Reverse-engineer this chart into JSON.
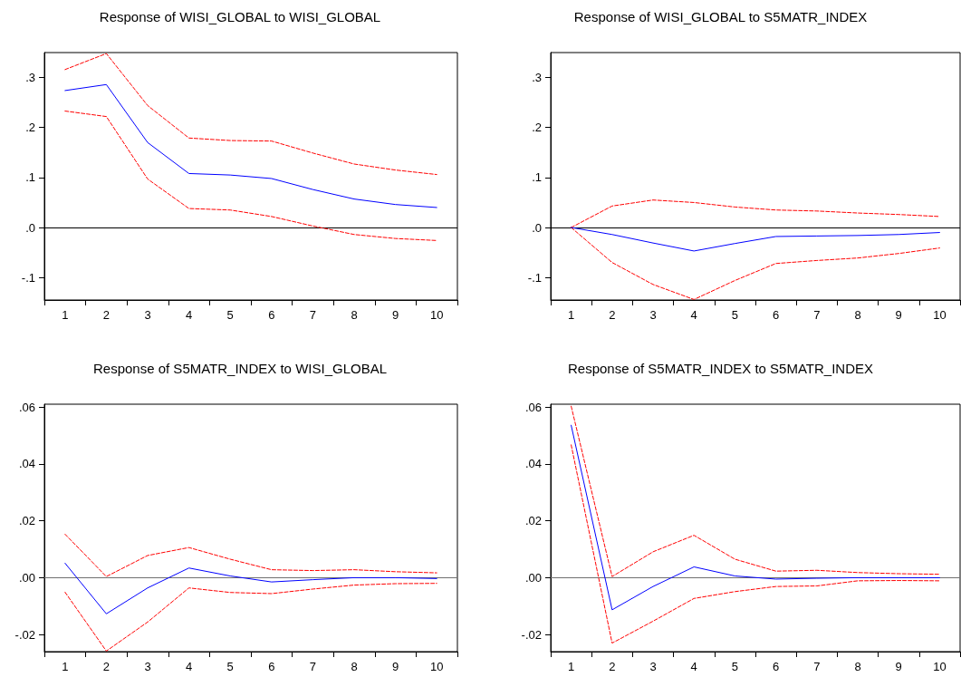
{
  "chart_data": [
    {
      "type": "line",
      "title": "Response of WISI_GLOBAL to WISI_GLOBAL",
      "categories": [
        "1",
        "2",
        "3",
        "4",
        "5",
        "6",
        "7",
        "8",
        "9",
        "10"
      ],
      "series": [
        {
          "color": "#0000ff",
          "line_style": "solid",
          "values": [
            0.274,
            0.286,
            0.17,
            0.108,
            0.105,
            0.098,
            0.076,
            0.057,
            0.046,
            0.04
          ]
        },
        {
          "color": "#ff0000",
          "line_style": "dashed",
          "values": [
            0.316,
            0.348,
            0.244,
            0.179,
            0.174,
            0.173,
            0.149,
            0.127,
            0.115,
            0.106
          ]
        },
        {
          "color": "#ff0000",
          "line_style": "dashed",
          "values": [
            0.233,
            0.222,
            0.097,
            0.038,
            0.035,
            0.022,
            0.003,
            -0.014,
            -0.022,
            -0.026
          ]
        }
      ],
      "ylim": [
        -0.145,
        0.35
      ],
      "yticks": [
        {
          "value": -0.1,
          "label": "-.1"
        },
        {
          "value": 0,
          "label": ".0"
        },
        {
          "value": 0.1,
          "label": ".1"
        },
        {
          "value": 0.2,
          "label": ".2"
        },
        {
          "value": 0.3,
          "label": ".3"
        }
      ],
      "ref_lines": [
        {
          "axis": "y",
          "value": 0,
          "label": null,
          "color": "#000000"
        }
      ]
    },
    {
      "type": "line",
      "title": "Response of WISI_GLOBAL to S5MATR_INDEX",
      "categories": [
        "1",
        "2",
        "3",
        "4",
        "5",
        "6",
        "7",
        "8",
        "9",
        "10"
      ],
      "series": [
        {
          "color": "#0000ff",
          "line_style": "solid",
          "values": [
            0,
            -0.014,
            -0.031,
            -0.047,
            -0.032,
            -0.018,
            -0.017,
            -0.016,
            -0.014,
            -0.01
          ]
        },
        {
          "color": "#ff0000",
          "line_style": "dashed",
          "values": [
            0,
            0.043,
            0.055,
            0.05,
            0.041,
            0.035,
            0.033,
            0.029,
            0.026,
            0.022
          ]
        },
        {
          "color": "#ff0000",
          "line_style": "dashed",
          "values": [
            0,
            -0.07,
            -0.114,
            -0.144,
            -0.106,
            -0.072,
            -0.066,
            -0.061,
            -0.052,
            -0.041
          ]
        }
      ],
      "ylim": [
        -0.145,
        0.35
      ],
      "yticks": [
        {
          "value": -0.1,
          "label": "-.1"
        },
        {
          "value": 0,
          "label": ".0"
        },
        {
          "value": 0.1,
          "label": ".1"
        },
        {
          "value": 0.2,
          "label": ".2"
        },
        {
          "value": 0.3,
          "label": ".3"
        }
      ],
      "ref_lines": [
        {
          "axis": "y",
          "value": 0,
          "label": null,
          "color": "#000000"
        }
      ]
    },
    {
      "type": "line",
      "title": "Response of S5MATR_INDEX to WISI_GLOBAL",
      "categories": [
        "1",
        "2",
        "3",
        "4",
        "5",
        "6",
        "7",
        "8",
        "9",
        "10"
      ],
      "series": [
        {
          "color": "#0000ff",
          "line_style": "solid",
          "values": [
            0.0051,
            -0.0127,
            -0.0036,
            0.0034,
            0.0006,
            -0.0015,
            -0.0007,
            0,
            0,
            -0.0003
          ]
        },
        {
          "color": "#ff0000",
          "line_style": "dashed",
          "values": [
            0.0153,
            0.0004,
            0.0078,
            0.0106,
            0.0065,
            0.0028,
            0.0025,
            0.0028,
            0.0021,
            0.0017
          ]
        },
        {
          "color": "#ff0000",
          "line_style": "dashed",
          "values": [
            -0.0051,
            -0.0258,
            -0.0156,
            -0.0036,
            -0.0052,
            -0.0056,
            -0.004,
            -0.0026,
            -0.0021,
            -0.002
          ]
        }
      ],
      "ylim": [
        -0.026,
        0.061
      ],
      "yticks": [
        {
          "value": -0.02,
          "label": "-.02"
        },
        {
          "value": 0,
          "label": ".00"
        },
        {
          "value": 0.02,
          "label": ".02"
        },
        {
          "value": 0.04,
          "label": ".04"
        },
        {
          "value": 0.06,
          "label": ".06"
        }
      ],
      "ref_lines": [
        {
          "axis": "y",
          "value": 0,
          "label": null,
          "color": "#707070"
        }
      ]
    },
    {
      "type": "line",
      "title": "Response of S5MATR_INDEX to S5MATR_INDEX",
      "categories": [
        "1",
        "2",
        "3",
        "4",
        "5",
        "6",
        "7",
        "8",
        "9",
        "10"
      ],
      "series": [
        {
          "color": "#0000ff",
          "line_style": "solid",
          "values": [
            0.0536,
            -0.0113,
            -0.0031,
            0.0038,
            0.0006,
            -0.0005,
            -0.0002,
            0,
            0,
            0
          ]
        },
        {
          "color": "#ff0000",
          "line_style": "dashed",
          "values": [
            0.0603,
            0.0004,
            0.0091,
            0.0149,
            0.0065,
            0.0023,
            0.0026,
            0.0018,
            0.0014,
            0.0012
          ]
        },
        {
          "color": "#ff0000",
          "line_style": "dashed",
          "values": [
            0.0467,
            -0.023,
            -0.0153,
            -0.0073,
            -0.0049,
            -0.0031,
            -0.0029,
            -0.0011,
            -0.001,
            -0.0011
          ]
        }
      ],
      "ylim": [
        -0.026,
        0.061
      ],
      "yticks": [
        {
          "value": -0.02,
          "label": "-.02"
        },
        {
          "value": 0,
          "label": ".00"
        },
        {
          "value": 0.02,
          "label": ".02"
        },
        {
          "value": 0.04,
          "label": ".04"
        },
        {
          "value": 0.06,
          "label": ".06"
        }
      ],
      "ref_lines": [
        {
          "axis": "y",
          "value": 0,
          "label": null,
          "color": "#707070"
        }
      ]
    }
  ]
}
